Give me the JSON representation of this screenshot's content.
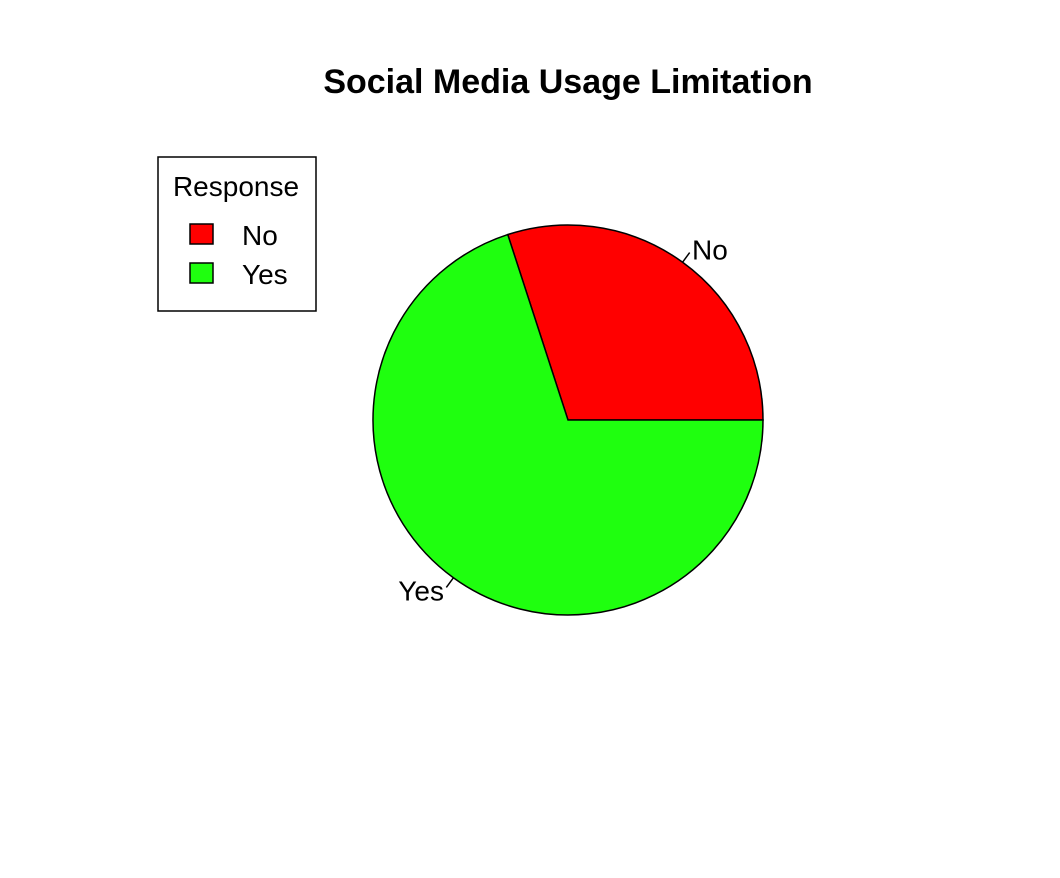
{
  "chart_data": {
    "type": "pie",
    "title": "Social Media Usage Limitation",
    "categories": [
      "No",
      "Yes"
    ],
    "values": [
      30,
      70
    ],
    "colors": [
      "#ff0000",
      "#1fff0f"
    ],
    "legend": {
      "title": "Response",
      "entries": [
        "No",
        "Yes"
      ],
      "placement": "top-left"
    }
  }
}
